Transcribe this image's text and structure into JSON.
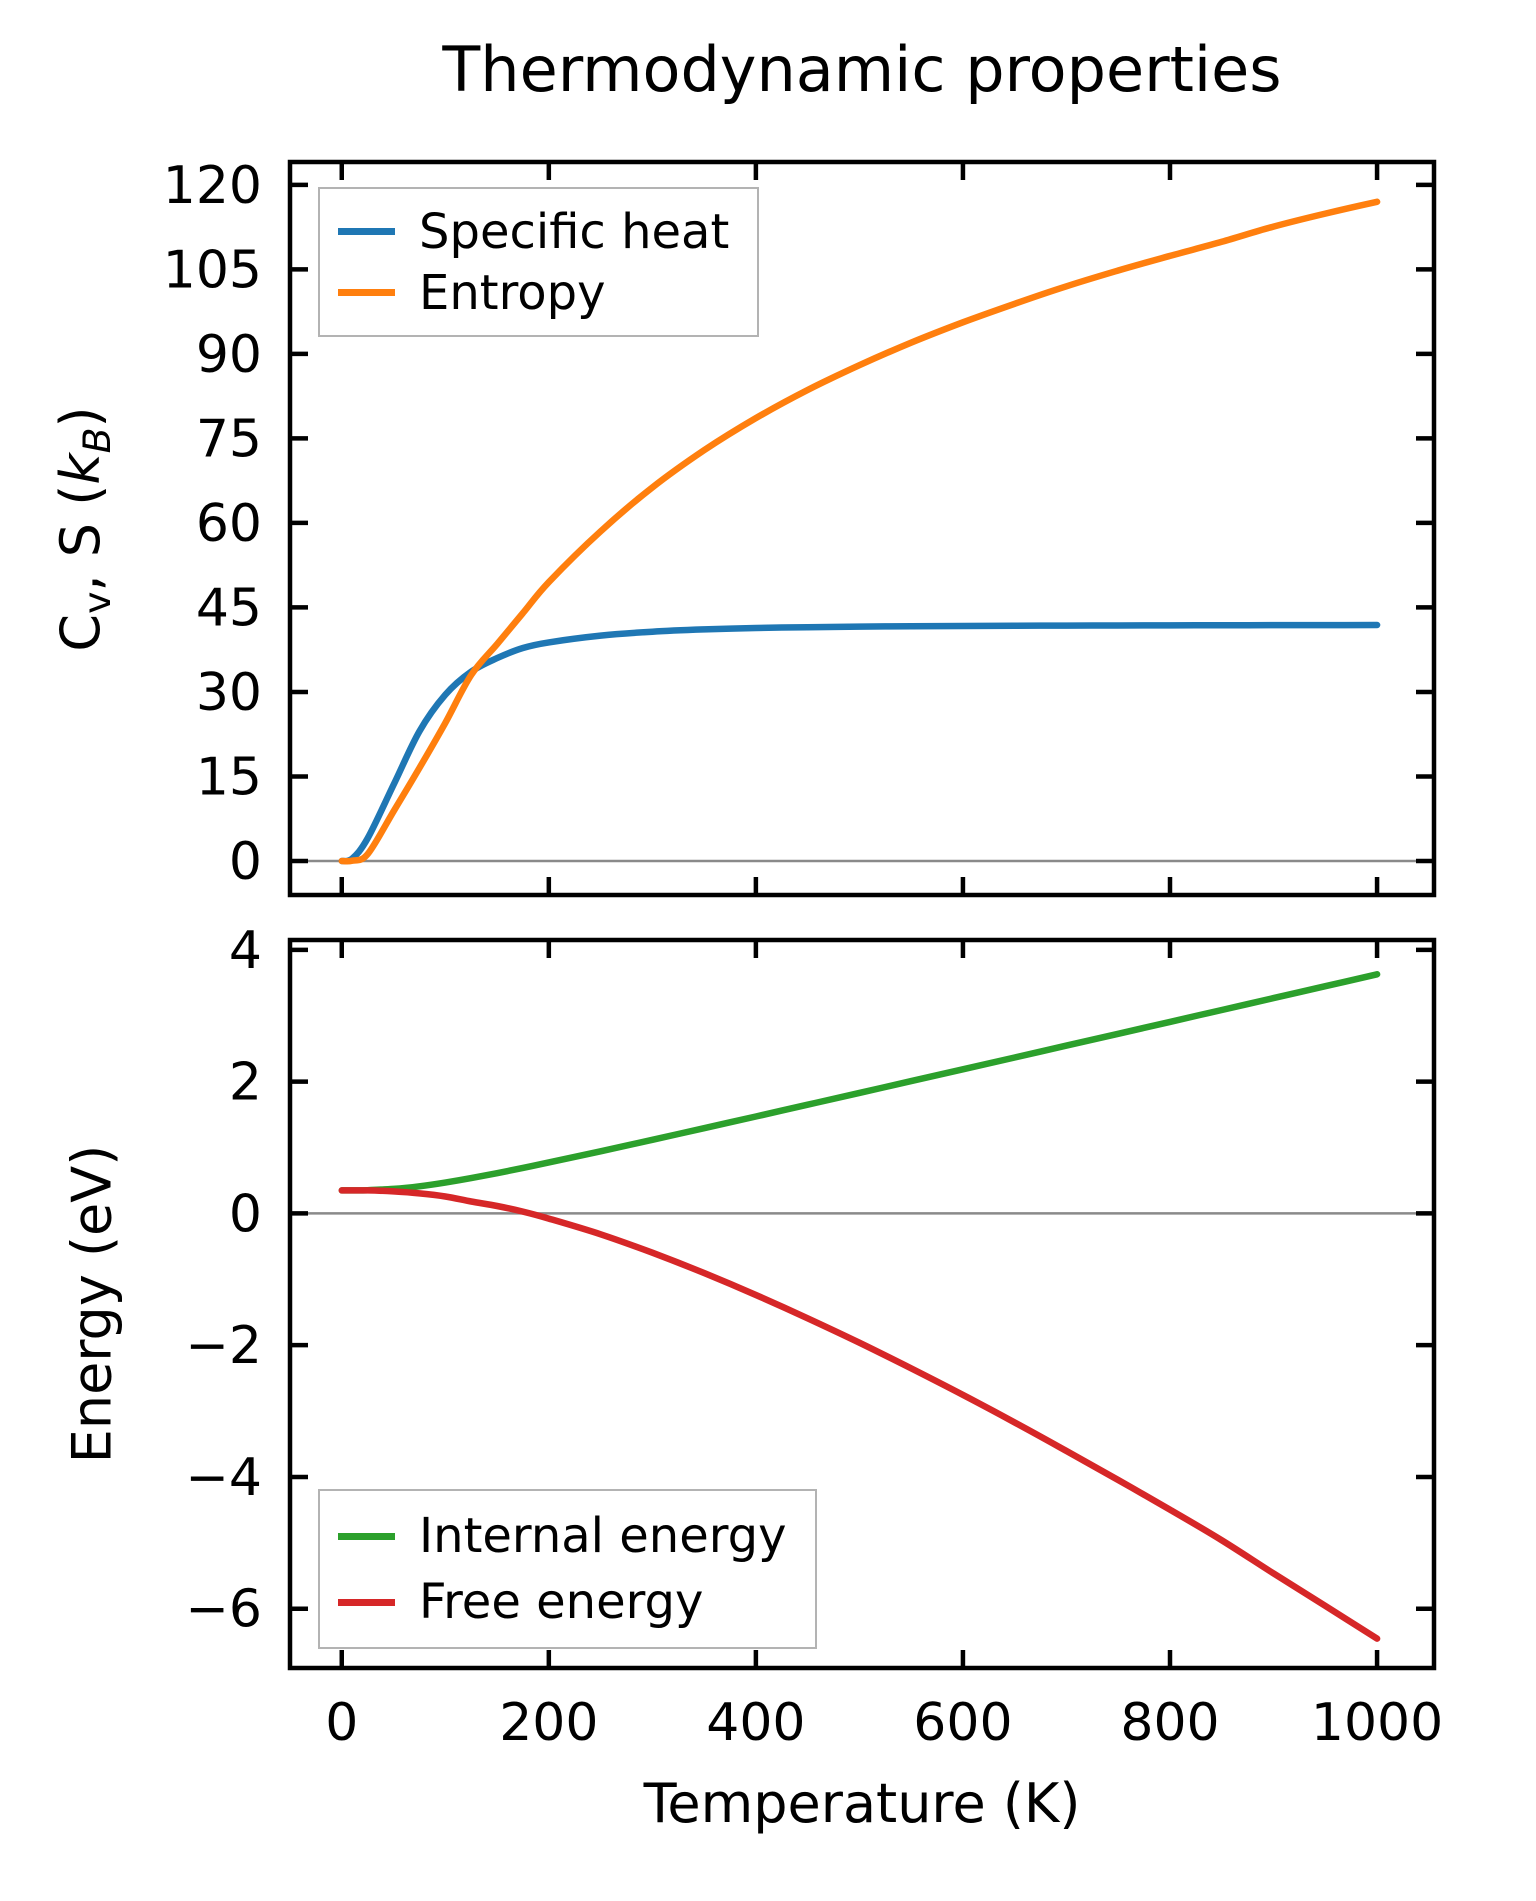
{
  "title": "Thermodynamic properties",
  "xlabel": "Temperature (K)",
  "ylabel_top_parts": {
    "base": "C",
    "base_sub": "v",
    "middle": ", S (",
    "k": "k",
    "k_sub": "B",
    "close": ")"
  },
  "ylabel_bottom": "Energy (eV)",
  "colors": {
    "specific_heat": "#1f77b4",
    "entropy": "#ff7f0e",
    "internal_energy": "#2ca02c",
    "free_energy": "#d62728",
    "axis": "#000000",
    "zero_line": "#8a8a8a",
    "legend_border": "#b3b3b3",
    "background": "#ffffff"
  },
  "chart_data": [
    {
      "type": "line",
      "panel": "top",
      "title": "Thermodynamic properties",
      "ylabel": "Cv, S (kB)",
      "x": [
        0,
        10,
        25,
        50,
        75,
        100,
        125,
        150,
        175,
        200,
        250,
        300,
        350,
        400,
        450,
        500,
        550,
        600,
        650,
        700,
        750,
        800,
        850,
        900,
        950,
        1000
      ],
      "series": [
        {
          "name": "Specific heat",
          "color_key": "specific_heat",
          "values": [
            0,
            0.4,
            4,
            13.5,
            23,
            29.5,
            33.6,
            36,
            37.8,
            38.8,
            40,
            40.7,
            41.1,
            41.35,
            41.5,
            41.6,
            41.65,
            41.7,
            41.75,
            41.78,
            41.8,
            41.82,
            41.84,
            41.86,
            41.87,
            41.88
          ]
        },
        {
          "name": "Entropy",
          "color_key": "entropy",
          "values": [
            0,
            0.05,
            1.2,
            8.8,
            16.5,
            24.5,
            33,
            38.5,
            44,
            49.5,
            58.5,
            66.3,
            72.9,
            78.6,
            83.6,
            88,
            92,
            95.6,
            98.9,
            102,
            104.8,
            107.4,
            109.9,
            112.6,
            114.9,
            117
          ]
        }
      ],
      "xlim": [
        -50,
        1055
      ],
      "ylim": [
        -6.04,
        124.06
      ],
      "xticks": [
        0,
        200,
        400,
        600,
        800,
        1000
      ],
      "show_xtick_labels": false,
      "yticks": [
        0,
        15,
        30,
        45,
        60,
        75,
        90,
        105,
        120
      ],
      "ytick_labels": [
        "0",
        "15",
        "30",
        "45",
        "60",
        "75",
        "90",
        "105",
        "120"
      ],
      "zero_line": true,
      "grid": false,
      "legend": {
        "location": "upper left",
        "labels": [
          "Specific heat",
          "Entropy"
        ]
      }
    },
    {
      "type": "line",
      "panel": "bottom",
      "xlabel": "Temperature (K)",
      "ylabel": "Energy (eV)",
      "x": [
        0,
        10,
        25,
        50,
        75,
        100,
        125,
        150,
        175,
        200,
        250,
        300,
        350,
        400,
        450,
        500,
        550,
        600,
        650,
        700,
        750,
        800,
        850,
        900,
        950,
        1000
      ],
      "series": [
        {
          "name": "Internal energy",
          "color_key": "internal_energy",
          "values": [
            0.35,
            0.35,
            0.353,
            0.372,
            0.411,
            0.468,
            0.536,
            0.611,
            0.691,
            0.774,
            0.943,
            1.117,
            1.294,
            1.471,
            1.65,
            1.829,
            2.008,
            2.188,
            2.367,
            2.547,
            2.727,
            2.907,
            3.088,
            3.268,
            3.448,
            3.629
          ]
        },
        {
          "name": "Free energy",
          "color_key": "free_energy",
          "values": [
            0.35,
            0.35,
            0.35,
            0.334,
            0.304,
            0.257,
            0.181,
            0.113,
            0.027,
            -0.079,
            -0.317,
            -0.597,
            -0.905,
            -1.238,
            -1.592,
            -1.963,
            -2.352,
            -2.755,
            -3.173,
            -3.606,
            -4.046,
            -4.497,
            -4.961,
            -5.464,
            -5.957,
            -6.453
          ]
        }
      ],
      "xlim": [
        -50,
        1055
      ],
      "ylim": [
        -6.9,
        4.15
      ],
      "xticks": [
        0,
        200,
        400,
        600,
        800,
        1000
      ],
      "xtick_labels": [
        "0",
        "200",
        "400",
        "600",
        "800",
        "1000"
      ],
      "show_xtick_labels": true,
      "yticks": [
        4,
        2,
        0,
        -2,
        -4,
        -6
      ],
      "ytick_labels": [
        "4",
        "2",
        "0",
        "−2",
        "−4",
        "−6"
      ],
      "zero_line": true,
      "grid": false,
      "legend": {
        "location": "lower left",
        "labels": [
          "Internal energy",
          "Free energy"
        ]
      }
    }
  ]
}
